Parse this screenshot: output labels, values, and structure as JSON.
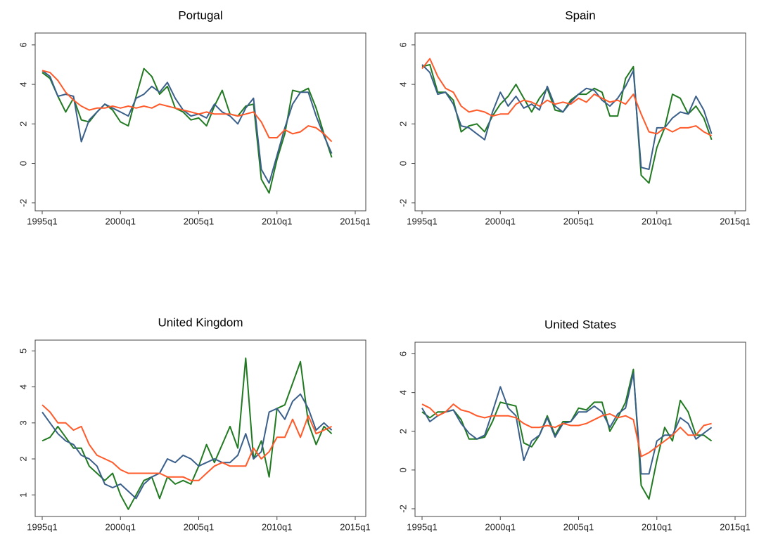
{
  "chart_data": [
    {
      "type": "line",
      "title": "Portugal",
      "x": [
        "1995q1",
        "1995q3",
        "1996q1",
        "1996q3",
        "1997q1",
        "1997q3",
        "1998q1",
        "1998q3",
        "1999q1",
        "1999q3",
        "2000q1",
        "2000q3",
        "2001q1",
        "2001q3",
        "2002q1",
        "2002q3",
        "2003q1",
        "2003q3",
        "2004q1",
        "2004q3",
        "2005q1",
        "2005q3",
        "2006q1",
        "2006q3",
        "2007q1",
        "2007q3",
        "2008q1",
        "2008q3",
        "2009q1",
        "2009q3",
        "2010q1",
        "2010q3",
        "2011q1",
        "2011q3",
        "2012q1",
        "2012q3",
        "2013q1",
        "2013q3"
      ],
      "xlim": [
        "1995q1",
        "2015q1"
      ],
      "xticks": [
        "1995q1",
        "2000q1",
        "2005q1",
        "2010q1",
        "2015q1"
      ],
      "ylim": [
        -2.4,
        6.6
      ],
      "yticks": [
        -2,
        0,
        2,
        4,
        6
      ],
      "series": [
        {
          "color": "#217a21",
          "values": [
            4.6,
            4.3,
            3.4,
            2.6,
            3.3,
            2.2,
            2.1,
            2.6,
            3.0,
            2.7,
            2.1,
            1.9,
            3.4,
            4.8,
            4.4,
            3.5,
            3.9,
            2.8,
            2.6,
            2.2,
            2.3,
            1.9,
            2.9,
            3.7,
            2.5,
            2.4,
            2.9,
            3.0,
            -0.8,
            -1.5,
            0.2,
            1.5,
            3.7,
            3.6,
            3.8,
            2.8,
            1.5,
            0.3
          ]
        },
        {
          "color": "#3a5f8a",
          "values": [
            4.7,
            4.4,
            3.4,
            3.5,
            3.4,
            1.1,
            2.2,
            2.6,
            3.0,
            2.8,
            2.6,
            2.4,
            3.3,
            3.5,
            3.9,
            3.6,
            4.1,
            3.3,
            2.7,
            2.4,
            2.5,
            2.3,
            3.0,
            2.6,
            2.4,
            2.0,
            2.8,
            3.3,
            -0.3,
            -1.0,
            0.4,
            1.8,
            3.0,
            3.6,
            3.6,
            2.4,
            1.4,
            0.5
          ]
        },
        {
          "color": "#ff5a2a",
          "values": [
            4.7,
            4.6,
            4.2,
            3.6,
            3.2,
            2.9,
            2.7,
            2.8,
            2.8,
            2.9,
            2.8,
            2.9,
            2.8,
            2.9,
            2.8,
            3.0,
            2.9,
            2.8,
            2.7,
            2.6,
            2.5,
            2.6,
            2.5,
            2.5,
            2.5,
            2.4,
            2.5,
            2.6,
            2.1,
            1.3,
            1.3,
            1.7,
            1.5,
            1.6,
            1.9,
            1.8,
            1.5,
            1.1
          ]
        }
      ]
    },
    {
      "type": "line",
      "title": "Spain",
      "x": [
        "1995q1",
        "1995q3",
        "1996q1",
        "1996q3",
        "1997q1",
        "1997q3",
        "1998q1",
        "1998q3",
        "1999q1",
        "1999q3",
        "2000q1",
        "2000q3",
        "2001q1",
        "2001q3",
        "2002q1",
        "2002q3",
        "2003q1",
        "2003q3",
        "2004q1",
        "2004q3",
        "2005q1",
        "2005q3",
        "2006q1",
        "2006q3",
        "2007q1",
        "2007q3",
        "2008q1",
        "2008q3",
        "2009q1",
        "2009q3",
        "2010q1",
        "2010q3",
        "2011q1",
        "2011q3",
        "2012q1",
        "2012q3",
        "2013q1",
        "2013q3"
      ],
      "xlim": [
        "1995q1",
        "2015q1"
      ],
      "xticks": [
        "1995q1",
        "2000q1",
        "2005q1",
        "2010q1",
        "2015q1"
      ],
      "ylim": [
        -2.4,
        6.6
      ],
      "yticks": [
        -2,
        0,
        2,
        4,
        6
      ],
      "series": [
        {
          "color": "#217a21",
          "values": [
            4.9,
            5.0,
            3.6,
            3.6,
            3.2,
            1.6,
            1.9,
            2.0,
            1.6,
            2.4,
            3.0,
            3.4,
            4.0,
            3.3,
            2.6,
            3.3,
            3.8,
            2.7,
            2.6,
            3.2,
            3.5,
            3.5,
            3.8,
            3.6,
            2.4,
            2.4,
            4.3,
            4.9,
            -0.6,
            -1.0,
            0.8,
            1.8,
            3.5,
            3.3,
            2.5,
            2.9,
            2.3,
            1.2
          ]
        },
        {
          "color": "#3a5f8a",
          "values": [
            5.0,
            4.6,
            3.5,
            3.6,
            3.0,
            1.9,
            1.8,
            1.5,
            1.2,
            2.6,
            3.6,
            2.9,
            3.4,
            2.8,
            3.0,
            2.7,
            3.9,
            2.9,
            2.6,
            3.1,
            3.5,
            3.8,
            3.7,
            3.2,
            2.9,
            3.3,
            3.9,
            4.7,
            -0.2,
            -0.3,
            1.8,
            1.8,
            2.3,
            2.6,
            2.5,
            3.4,
            2.7,
            1.5
          ]
        },
        {
          "color": "#ff5a2a",
          "values": [
            4.8,
            5.3,
            4.4,
            3.8,
            3.6,
            2.9,
            2.6,
            2.7,
            2.6,
            2.4,
            2.5,
            2.5,
            3.0,
            3.2,
            3.1,
            2.9,
            3.2,
            3.0,
            3.1,
            3.0,
            3.3,
            3.1,
            3.5,
            3.3,
            3.1,
            3.2,
            3.0,
            3.5,
            2.5,
            1.6,
            1.5,
            1.8,
            1.6,
            1.8,
            1.8,
            1.9,
            1.6,
            1.4
          ]
        }
      ]
    },
    {
      "type": "line",
      "title": "United Kingdom",
      "x": [
        "1995q1",
        "1995q3",
        "1996q1",
        "1996q3",
        "1997q1",
        "1997q3",
        "1998q1",
        "1998q3",
        "1999q1",
        "1999q3",
        "2000q1",
        "2000q3",
        "2001q1",
        "2001q3",
        "2002q1",
        "2002q3",
        "2003q1",
        "2003q3",
        "2004q1",
        "2004q3",
        "2005q1",
        "2005q3",
        "2006q1",
        "2006q3",
        "2007q1",
        "2007q3",
        "2008q1",
        "2008q3",
        "2009q1",
        "2009q3",
        "2010q1",
        "2010q3",
        "2011q1",
        "2011q3",
        "2012q1",
        "2012q3",
        "2013q1",
        "2013q3"
      ],
      "xlim": [
        "1995q1",
        "2015q1"
      ],
      "xticks": [
        "1995q1",
        "2000q1",
        "2005q1",
        "2010q1",
        "2015q1"
      ],
      "ylim": [
        0.4,
        5.3
      ],
      "yticks": [
        1,
        2,
        3,
        4,
        5
      ],
      "series": [
        {
          "color": "#217a21",
          "values": [
            2.5,
            2.6,
            2.9,
            2.6,
            2.3,
            2.3,
            1.8,
            1.6,
            1.4,
            1.6,
            1.0,
            0.6,
            1.0,
            1.4,
            1.5,
            0.9,
            1.5,
            1.3,
            1.4,
            1.3,
            1.8,
            2.4,
            1.9,
            2.4,
            2.9,
            2.3,
            4.8,
            2.0,
            2.5,
            1.5,
            3.4,
            3.5,
            4.1,
            4.7,
            3.0,
            2.4,
            2.9,
            2.7
          ]
        },
        {
          "color": "#3a5f8a",
          "values": [
            3.3,
            3.0,
            2.7,
            2.5,
            2.4,
            2.1,
            2.0,
            1.8,
            1.3,
            1.2,
            1.3,
            1.1,
            0.9,
            1.3,
            1.5,
            1.6,
            2.0,
            1.9,
            2.1,
            2.0,
            1.8,
            1.9,
            2.0,
            1.9,
            1.9,
            2.1,
            2.7,
            2.0,
            2.2,
            3.3,
            3.4,
            3.1,
            3.6,
            3.8,
            3.4,
            2.8,
            3.0,
            2.8
          ]
        },
        {
          "color": "#ff5a2a",
          "values": [
            3.5,
            3.3,
            3.0,
            3.0,
            2.8,
            2.9,
            2.4,
            2.1,
            2.0,
            1.9,
            1.7,
            1.6,
            1.6,
            1.6,
            1.6,
            1.6,
            1.5,
            1.5,
            1.5,
            1.4,
            1.4,
            1.6,
            1.8,
            1.9,
            1.8,
            1.8,
            1.8,
            2.3,
            2.0,
            2.2,
            2.6,
            2.6,
            3.1,
            2.6,
            3.2,
            2.7,
            2.8,
            2.9
          ]
        }
      ]
    },
    {
      "type": "line",
      "title": "United States",
      "x": [
        "1995q1",
        "1995q3",
        "1996q1",
        "1996q3",
        "1997q1",
        "1997q3",
        "1998q1",
        "1998q3",
        "1999q1",
        "1999q3",
        "2000q1",
        "2000q3",
        "2001q1",
        "2001q3",
        "2002q1",
        "2002q3",
        "2003q1",
        "2003q3",
        "2004q1",
        "2004q3",
        "2005q1",
        "2005q3",
        "2006q1",
        "2006q3",
        "2007q1",
        "2007q3",
        "2008q1",
        "2008q3",
        "2009q1",
        "2009q3",
        "2010q1",
        "2010q3",
        "2011q1",
        "2011q3",
        "2012q1",
        "2012q3",
        "2013q1",
        "2013q3"
      ],
      "xlim": [
        "1995q1",
        "2015q1"
      ],
      "xticks": [
        "1995q1",
        "2000q1",
        "2005q1",
        "2010q1",
        "2015q1"
      ],
      "ylim": [
        -2.4,
        6.6
      ],
      "yticks": [
        -2,
        0,
        2,
        4,
        6
      ],
      "series": [
        {
          "color": "#217a21",
          "values": [
            3.0,
            2.7,
            3.0,
            3.0,
            3.1,
            2.6,
            1.6,
            1.6,
            1.7,
            2.5,
            3.5,
            3.4,
            3.3,
            1.4,
            1.2,
            1.8,
            2.8,
            1.8,
            2.5,
            2.5,
            3.2,
            3.1,
            3.5,
            3.5,
            2.0,
            2.7,
            3.5,
            5.2,
            -0.8,
            -1.5,
            0.5,
            2.2,
            1.5,
            3.6,
            3.0,
            1.8,
            1.8,
            1.5
          ]
        },
        {
          "color": "#3a5f8a",
          "values": [
            3.2,
            2.5,
            2.8,
            3.0,
            3.1,
            2.4,
            1.9,
            1.6,
            1.8,
            3.0,
            4.3,
            3.2,
            2.8,
            0.5,
            1.5,
            1.8,
            2.7,
            1.7,
            2.4,
            2.5,
            3.0,
            3.0,
            3.3,
            3.0,
            2.2,
            2.9,
            3.2,
            5.0,
            -0.2,
            -0.2,
            1.5,
            1.8,
            1.8,
            2.7,
            2.4,
            1.6,
            1.9,
            2.2
          ]
        },
        {
          "color": "#ff5a2a",
          "values": [
            3.4,
            3.2,
            2.8,
            3.0,
            3.4,
            3.1,
            3.0,
            2.8,
            2.7,
            2.8,
            2.8,
            2.8,
            2.7,
            2.4,
            2.2,
            2.2,
            2.3,
            2.2,
            2.4,
            2.3,
            2.3,
            2.4,
            2.6,
            2.8,
            2.9,
            2.7,
            2.8,
            2.6,
            0.7,
            0.9,
            1.2,
            1.5,
            1.8,
            2.2,
            1.8,
            1.8,
            2.3,
            2.4
          ]
        }
      ]
    }
  ]
}
